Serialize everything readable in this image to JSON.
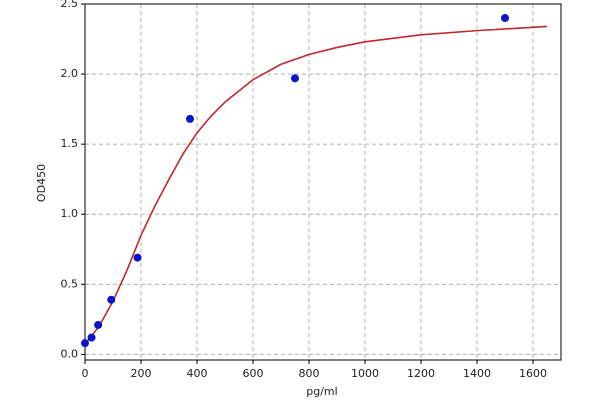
{
  "chart_data": {
    "type": "scatter",
    "xlabel": "pg/ml",
    "ylabel": "OD450",
    "xlim": [
      0,
      1700
    ],
    "ylim": [
      -0.04,
      2.5
    ],
    "xticks": [
      0,
      200,
      400,
      600,
      800,
      1000,
      1200,
      1400,
      1600
    ],
    "yticks": [
      {
        "value": 0,
        "label": "0.0"
      },
      0.5,
      {
        "value": 1,
        "label": "1.0"
      },
      1.5,
      {
        "value": 2,
        "label": "2.0"
      },
      2.5
    ],
    "grid": true,
    "series": [
      {
        "type": "line",
        "color": "#c0282d",
        "x": [
          0,
          50,
          100,
          150,
          200,
          250,
          300,
          350,
          400,
          450,
          500,
          600,
          700,
          800,
          900,
          1000,
          1200,
          1400,
          1650
        ],
        "values": [
          0.07,
          0.2,
          0.38,
          0.6,
          0.85,
          1.06,
          1.25,
          1.43,
          1.58,
          1.7,
          1.8,
          1.96,
          2.07,
          2.14,
          2.19,
          2.23,
          2.28,
          2.31,
          2.34
        ]
      },
      {
        "type": "scatter",
        "color": "#0a14c8",
        "x": [
          0,
          23.4,
          46.9,
          93.75,
          187.5,
          375,
          750,
          1500
        ],
        "values": [
          0.08,
          0.12,
          0.21,
          0.39,
          0.69,
          1.68,
          1.97,
          2.4
        ]
      }
    ]
  }
}
